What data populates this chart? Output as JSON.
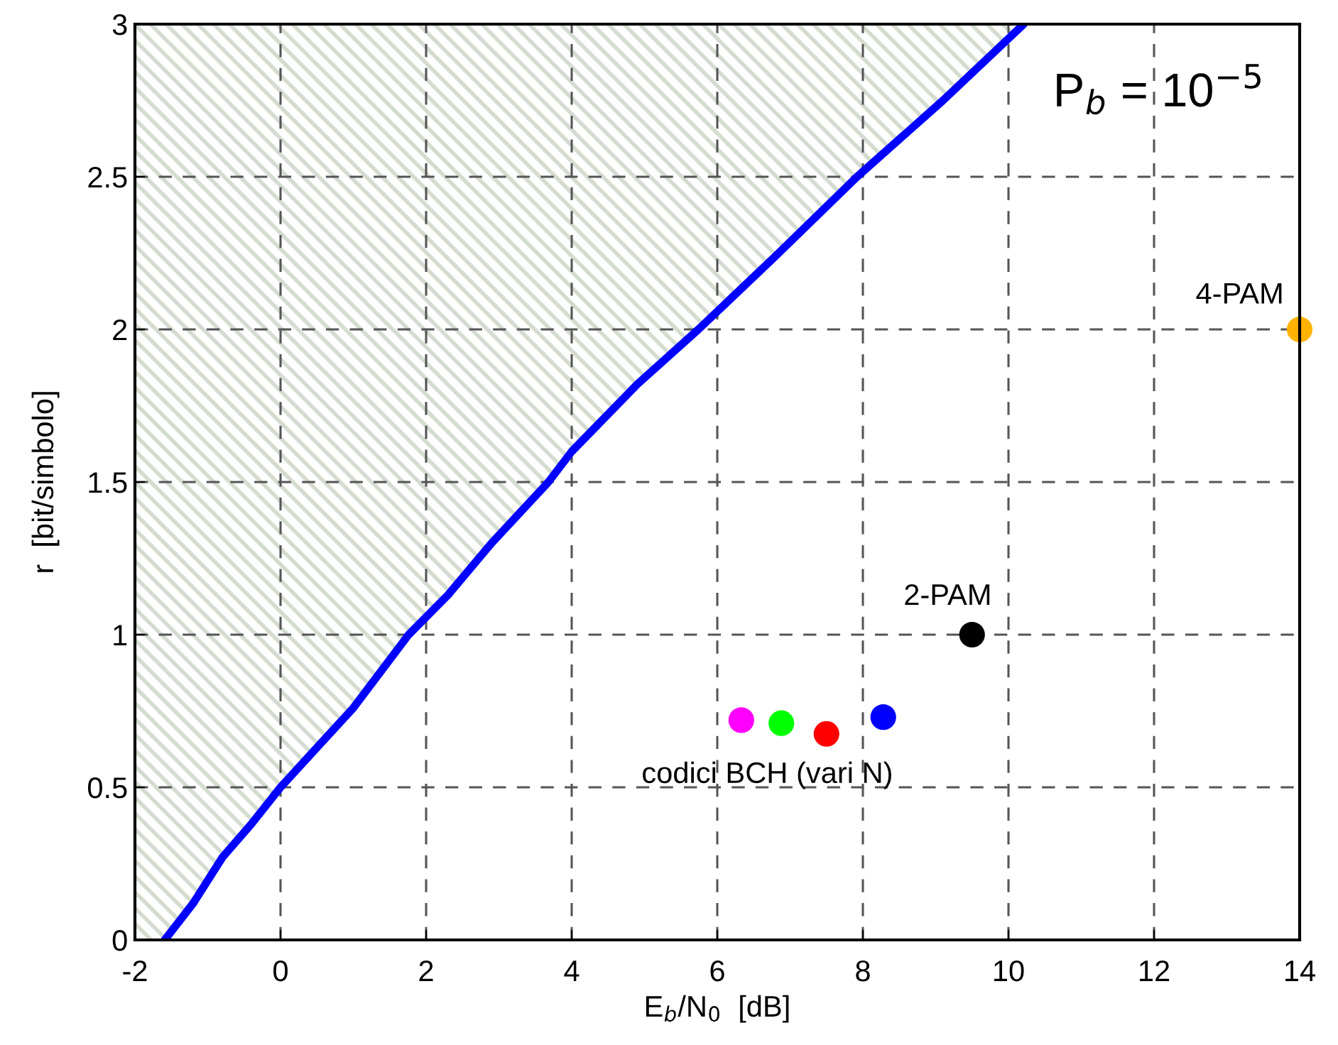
{
  "chart_data": {
    "type": "scatter",
    "xlabel": "E$_{b}$/N$_{0}$  [dB]",
    "ylabel": "r  [bit/simbolo]",
    "xlim": [
      -2,
      14
    ],
    "ylim": [
      0,
      3
    ],
    "xticks": [
      -2,
      0,
      2,
      4,
      6,
      8,
      10,
      12,
      14
    ],
    "yticks": [
      0,
      0.5,
      1,
      1.5,
      2,
      2.5,
      3
    ],
    "grid": true,
    "series": [
      {
        "type": "line",
        "marker": "none",
        "color": "#0000ff",
        "x": [
          -2,
          -1.59,
          -1.2,
          -0.8,
          -0.4,
          0,
          0.5,
          1,
          1.76,
          2.3,
          2.9,
          3.68,
          4.0,
          4.9,
          5.74,
          6.8,
          7.92,
          9.1,
          10.21
        ],
        "values": [
          null,
          0,
          0.12,
          0.27,
          0.38,
          0.5,
          0.63,
          0.76,
          1.0,
          1.13,
          1.3,
          1.5,
          1.6,
          1.82,
          2.0,
          2.24,
          2.5,
          2.75,
          3.0
        ],
        "lower": [
          0,
          0,
          0.12,
          0.27,
          0.38,
          0.5,
          0.63,
          0.76,
          1.0,
          1.13,
          1.3,
          1.5,
          1.6,
          1.82,
          2.0,
          2.24,
          2.5,
          2.75,
          3.0
        ],
        "upper": [
          3,
          3,
          3,
          3,
          3,
          3,
          3,
          3,
          3,
          3,
          3,
          3,
          3,
          3,
          3,
          3,
          3,
          3,
          3
        ]
      },
      {
        "marker": "circle",
        "color": "#ff00ff",
        "x": [
          6.33
        ],
        "values": [
          0.72
        ]
      },
      {
        "marker": "circle",
        "color": "#00ff00",
        "x": [
          6.88
        ],
        "values": [
          0.71
        ]
      },
      {
        "marker": "circle",
        "color": "#ff0000",
        "x": [
          7.5
        ],
        "values": [
          0.675
        ]
      },
      {
        "marker": "circle",
        "color": "#0000ff",
        "x": [
          8.28
        ],
        "values": [
          0.73
        ]
      },
      {
        "marker": "circle",
        "color": "#000000",
        "x": [
          9.5
        ],
        "values": [
          1
        ]
      },
      {
        "marker": "circle",
        "color": "#ffb300",
        "x": [
          14
        ],
        "values": [
          2
        ]
      }
    ],
    "annotations": [
      "P$_{b}$ = 10$^{−5}$",
      {
        "text": "4-PAM",
        "x": 14,
        "y": 2
      },
      {
        "text": "2-PAM",
        "x": 9.5,
        "y": 1
      },
      {
        "text": "codici BCH (vari N)",
        "x": 7.5,
        "y": 0.675
      }
    ]
  }
}
